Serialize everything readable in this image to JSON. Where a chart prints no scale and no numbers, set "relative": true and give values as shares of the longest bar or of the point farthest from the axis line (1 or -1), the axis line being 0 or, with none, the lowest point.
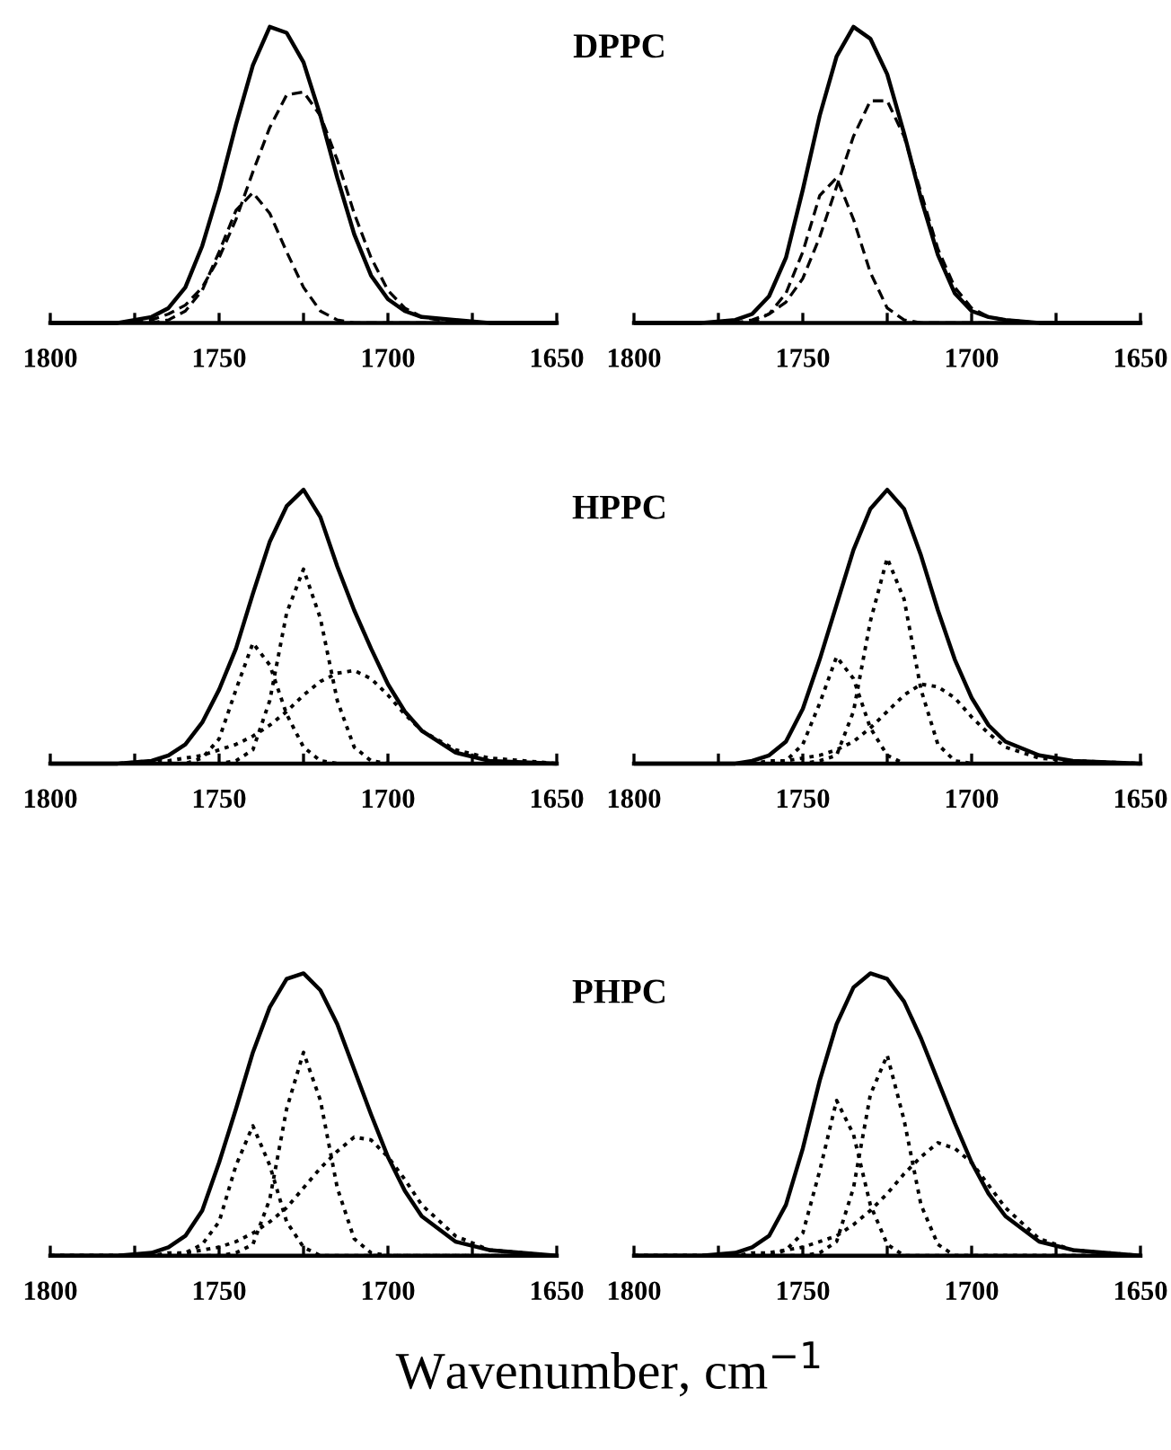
{
  "chart_data": [
    {
      "type": "line",
      "title": "DPPC",
      "relative": true,
      "xlim": [
        1800,
        1650
      ],
      "xticks": [
        1800,
        {
          "value": 1775,
          "label": null
        },
        1750,
        {
          "value": 1725,
          "label": null
        },
        1700,
        {
          "value": 1675,
          "label": null
        },
        1650
      ],
      "tick_labels": "x",
      "x": [
        1800,
        1780,
        1770,
        1765,
        1760,
        1755,
        1750,
        1745,
        1740,
        1735,
        1730,
        1725,
        1720,
        1715,
        1710,
        1705,
        1700,
        1695,
        1690,
        1680,
        1670,
        1650
      ],
      "series": [
        {
          "color": "#000000",
          "line_style": "solid",
          "values": [
            0,
            0,
            0.02,
            0.05,
            0.12,
            0.26,
            0.45,
            0.67,
            0.87,
            1.0,
            0.98,
            0.88,
            0.7,
            0.49,
            0.3,
            0.16,
            0.08,
            0.04,
            0.02,
            0.01,
            0,
            0
          ]
        },
        {
          "color": "#000000",
          "line_style": "dashed",
          "values": [
            0,
            0,
            0.01,
            0.03,
            0.06,
            0.12,
            0.22,
            0.35,
            0.51,
            0.66,
            0.77,
            0.78,
            0.7,
            0.55,
            0.37,
            0.22,
            0.11,
            0.05,
            0.02,
            0,
            0,
            0
          ]
        },
        {
          "color": "#000000",
          "line_style": "dashed",
          "values": [
            0,
            0,
            0,
            0.01,
            0.04,
            0.11,
            0.24,
            0.38,
            0.44,
            0.37,
            0.24,
            0.12,
            0.04,
            0.01,
            0,
            0,
            0,
            0,
            0,
            0,
            0,
            0
          ]
        }
      ]
    },
    {
      "type": "line",
      "relative": true,
      "xlim": [
        1800,
        1650
      ],
      "xticks": [
        1800,
        {
          "value": 1775,
          "label": null
        },
        1750,
        {
          "value": 1725,
          "label": null
        },
        1700,
        {
          "value": 1675,
          "label": null
        },
        1650
      ],
      "tick_labels": "x",
      "x": [
        1800,
        1780,
        1770,
        1765,
        1760,
        1755,
        1750,
        1745,
        1740,
        1735,
        1730,
        1725,
        1720,
        1715,
        1710,
        1705,
        1700,
        1695,
        1690,
        1680,
        1670,
        1650
      ],
      "series": [
        {
          "color": "#000000",
          "line_style": "solid",
          "values": [
            0,
            0,
            0.01,
            0.03,
            0.09,
            0.22,
            0.45,
            0.7,
            0.9,
            1.0,
            0.96,
            0.84,
            0.64,
            0.42,
            0.23,
            0.1,
            0.04,
            0.02,
            0.01,
            0,
            0,
            0
          ]
        },
        {
          "color": "#000000",
          "line_style": "dashed",
          "values": [
            0,
            0,
            0,
            0.01,
            0.03,
            0.07,
            0.15,
            0.29,
            0.46,
            0.63,
            0.75,
            0.75,
            0.63,
            0.44,
            0.25,
            0.12,
            0.05,
            0.02,
            0.01,
            0,
            0,
            0
          ]
        },
        {
          "color": "#000000",
          "line_style": "dashed",
          "values": [
            0,
            0,
            0,
            0,
            0.03,
            0.1,
            0.24,
            0.43,
            0.49,
            0.35,
            0.17,
            0.05,
            0.01,
            0,
            0,
            0,
            0,
            0,
            0,
            0,
            0,
            0
          ]
        }
      ]
    },
    {
      "type": "line",
      "title": "HPPC",
      "relative": true,
      "xlim": [
        1800,
        1650
      ],
      "xticks": [
        1800,
        {
          "value": 1775,
          "label": null
        },
        1750,
        {
          "value": 1725,
          "label": null
        },
        1700,
        {
          "value": 1675,
          "label": null
        },
        1650
      ],
      "tick_labels": "x",
      "x": [
        1800,
        1780,
        1770,
        1765,
        1760,
        1755,
        1750,
        1745,
        1740,
        1735,
        1730,
        1725,
        1720,
        1715,
        1710,
        1705,
        1700,
        1695,
        1690,
        1680,
        1670,
        1650
      ],
      "series": [
        {
          "color": "#000000",
          "line_style": "solid",
          "values": [
            0,
            0,
            0.01,
            0.03,
            0.07,
            0.15,
            0.27,
            0.42,
            0.62,
            0.81,
            0.94,
            1.0,
            0.9,
            0.72,
            0.56,
            0.42,
            0.29,
            0.19,
            0.12,
            0.04,
            0.01,
            0
          ]
        },
        {
          "color": "#000000",
          "line_style": "dotted",
          "values": [
            0,
            0,
            0,
            0,
            0,
            0,
            0,
            0.01,
            0.05,
            0.23,
            0.55,
            0.71,
            0.53,
            0.23,
            0.06,
            0.01,
            0,
            0,
            0,
            0,
            0,
            0
          ]
        },
        {
          "color": "#000000",
          "line_style": "dotted",
          "values": [
            0,
            0,
            0,
            0,
            0,
            0.02,
            0.09,
            0.27,
            0.44,
            0.36,
            0.18,
            0.06,
            0.01,
            0,
            0,
            0,
            0,
            0,
            0,
            0,
            0,
            0
          ]
        },
        {
          "color": "#000000",
          "line_style": "dotted",
          "values": [
            0,
            0,
            0.01,
            0.01,
            0.02,
            0.03,
            0.05,
            0.07,
            0.1,
            0.14,
            0.19,
            0.25,
            0.3,
            0.33,
            0.34,
            0.31,
            0.25,
            0.18,
            0.12,
            0.05,
            0.02,
            0
          ]
        }
      ]
    },
    {
      "type": "line",
      "relative": true,
      "xlim": [
        1800,
        1650
      ],
      "xticks": [
        1800,
        {
          "value": 1775,
          "label": null
        },
        1750,
        {
          "value": 1725,
          "label": null
        },
        1700,
        {
          "value": 1675,
          "label": null
        },
        1650
      ],
      "tick_labels": "x",
      "x": [
        1800,
        1780,
        1770,
        1765,
        1760,
        1755,
        1750,
        1745,
        1740,
        1735,
        1730,
        1725,
        1720,
        1715,
        1710,
        1705,
        1700,
        1695,
        1690,
        1680,
        1670,
        1650
      ],
      "series": [
        {
          "color": "#000000",
          "line_style": "solid",
          "values": [
            0,
            0,
            0,
            0.01,
            0.03,
            0.08,
            0.2,
            0.38,
            0.58,
            0.78,
            0.93,
            1.0,
            0.93,
            0.76,
            0.56,
            0.38,
            0.24,
            0.14,
            0.08,
            0.03,
            0.01,
            0
          ]
        },
        {
          "color": "#000000",
          "line_style": "dotted",
          "values": [
            0,
            0,
            0,
            0,
            0,
            0,
            0,
            0.01,
            0.03,
            0.19,
            0.52,
            0.75,
            0.6,
            0.27,
            0.07,
            0.01,
            0,
            0,
            0,
            0,
            0,
            0
          ]
        },
        {
          "color": "#000000",
          "line_style": "dotted",
          "values": [
            0,
            0,
            0,
            0,
            0,
            0.01,
            0.07,
            0.22,
            0.39,
            0.31,
            0.13,
            0.03,
            0,
            0,
            0,
            0,
            0,
            0,
            0,
            0,
            0,
            0
          ]
        },
        {
          "color": "#000000",
          "line_style": "dotted",
          "values": [
            0,
            0,
            0,
            0,
            0.01,
            0.01,
            0.02,
            0.03,
            0.05,
            0.08,
            0.13,
            0.19,
            0.25,
            0.29,
            0.28,
            0.24,
            0.17,
            0.11,
            0.06,
            0.02,
            0.01,
            0
          ]
        }
      ]
    },
    {
      "type": "line",
      "title": "PHPC",
      "xlabel": "Wavenumber, cm$^{−1}$",
      "relative": true,
      "xlim": [
        1800,
        1650
      ],
      "xticks": [
        1800,
        {
          "value": 1775,
          "label": null
        },
        1750,
        {
          "value": 1725,
          "label": null
        },
        1700,
        {
          "value": 1675,
          "label": null
        },
        1650
      ],
      "tick_labels": "x",
      "x": [
        1800,
        1780,
        1770,
        1765,
        1760,
        1755,
        1750,
        1745,
        1740,
        1735,
        1730,
        1725,
        1720,
        1715,
        1710,
        1705,
        1700,
        1695,
        1690,
        1680,
        1670,
        1650
      ],
      "series": [
        {
          "color": "#000000",
          "line_style": "solid",
          "values": [
            0,
            0,
            0.01,
            0.03,
            0.07,
            0.16,
            0.33,
            0.52,
            0.72,
            0.88,
            0.98,
            1.0,
            0.94,
            0.82,
            0.66,
            0.5,
            0.35,
            0.23,
            0.14,
            0.05,
            0.02,
            0
          ]
        },
        {
          "color": "#000000",
          "line_style": "dotted",
          "values": [
            0,
            0,
            0,
            0,
            0,
            0,
            0,
            0.01,
            0.04,
            0.2,
            0.52,
            0.72,
            0.55,
            0.24,
            0.06,
            0.01,
            0,
            0,
            0,
            0,
            0,
            0
          ]
        },
        {
          "color": "#000000",
          "line_style": "dotted",
          "values": [
            0,
            0,
            0,
            0,
            0.01,
            0.04,
            0.12,
            0.32,
            0.46,
            0.32,
            0.12,
            0.03,
            0,
            0,
            0,
            0,
            0,
            0,
            0,
            0,
            0,
            0
          ]
        },
        {
          "color": "#000000",
          "line_style": "dotted",
          "values": [
            0,
            0,
            0,
            0.01,
            0.01,
            0.02,
            0.03,
            0.05,
            0.08,
            0.12,
            0.17,
            0.24,
            0.31,
            0.37,
            0.42,
            0.41,
            0.35,
            0.27,
            0.18,
            0.07,
            0.02,
            0
          ]
        }
      ]
    },
    {
      "type": "line",
      "relative": true,
      "xlim": [
        1800,
        1650
      ],
      "xticks": [
        1800,
        {
          "value": 1775,
          "label": null
        },
        1750,
        {
          "value": 1725,
          "label": null
        },
        1700,
        {
          "value": 1675,
          "label": null
        },
        1650
      ],
      "tick_labels": "x",
      "x": [
        1800,
        1780,
        1770,
        1765,
        1760,
        1755,
        1750,
        1745,
        1740,
        1735,
        1730,
        1725,
        1720,
        1715,
        1710,
        1705,
        1700,
        1695,
        1690,
        1680,
        1670,
        1650
      ],
      "series": [
        {
          "color": "#000000",
          "line_style": "solid",
          "values": [
            0,
            0,
            0.01,
            0.03,
            0.07,
            0.18,
            0.38,
            0.62,
            0.82,
            0.95,
            1.0,
            0.98,
            0.9,
            0.77,
            0.62,
            0.47,
            0.33,
            0.22,
            0.14,
            0.05,
            0.02,
            0
          ]
        },
        {
          "color": "#000000",
          "line_style": "dotted",
          "values": [
            0,
            0,
            0,
            0,
            0,
            0,
            0,
            0.01,
            0.05,
            0.24,
            0.57,
            0.71,
            0.48,
            0.18,
            0.04,
            0,
            0,
            0,
            0,
            0,
            0,
            0
          ]
        },
        {
          "color": "#000000",
          "line_style": "dotted",
          "values": [
            0,
            0,
            0,
            0,
            0,
            0.02,
            0.08,
            0.3,
            0.55,
            0.43,
            0.18,
            0.04,
            0,
            0,
            0,
            0,
            0,
            0,
            0,
            0,
            0,
            0
          ]
        },
        {
          "color": "#000000",
          "line_style": "dotted",
          "values": [
            0,
            0,
            0,
            0.01,
            0.01,
            0.02,
            0.03,
            0.05,
            0.07,
            0.11,
            0.16,
            0.22,
            0.29,
            0.35,
            0.4,
            0.38,
            0.33,
            0.25,
            0.17,
            0.06,
            0.02,
            0
          ]
        }
      ]
    }
  ]
}
